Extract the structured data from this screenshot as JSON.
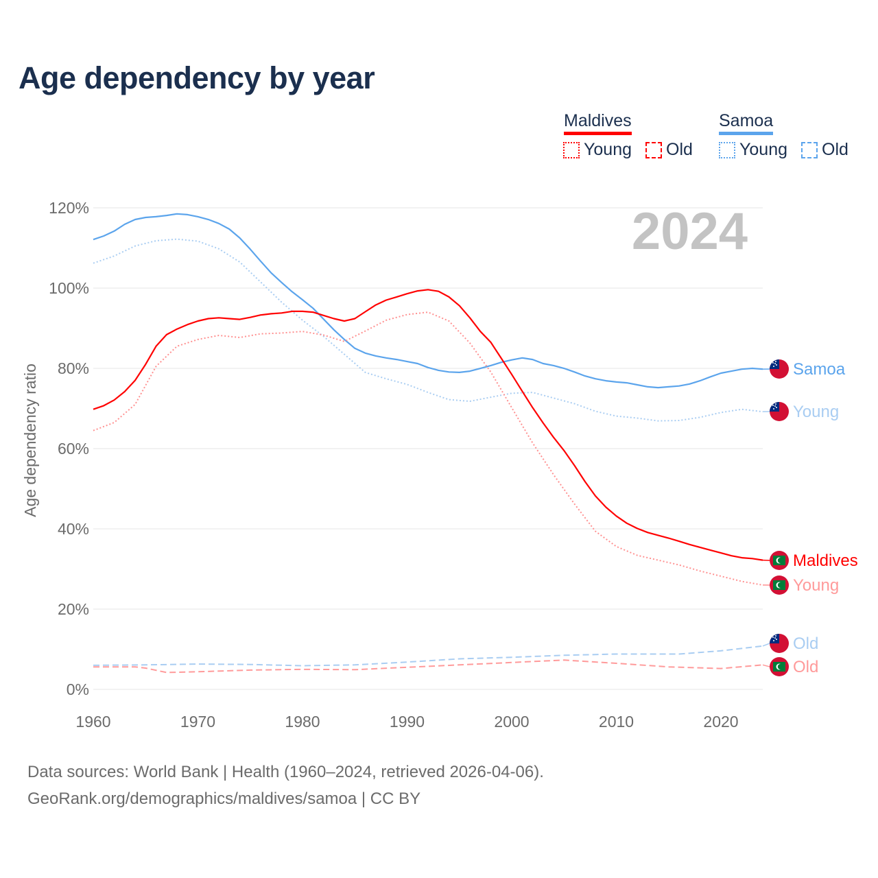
{
  "title": "Age dependency by year",
  "legend": {
    "groups": [
      {
        "name": "Maldives",
        "color": "#ff0000",
        "items": [
          "Young",
          "Old"
        ]
      },
      {
        "name": "Samoa",
        "color": "#5ba4ec",
        "items": [
          "Young",
          "Old"
        ]
      }
    ]
  },
  "year_badge": "2024",
  "footer": {
    "line1": "Data sources: World Bank | Health (1960–2024, retrieved 2026-04-06).",
    "line2": "GeoRank.org/demographics/maldives/samoa | CC BY"
  },
  "chart_data": {
    "type": "line",
    "title": "Age dependency by year",
    "xlabel": "",
    "ylabel": "Age dependency ratio",
    "xlim": [
      1960,
      2024
    ],
    "ylim": [
      0,
      120
    ],
    "x_ticks": [
      "1960",
      "1970",
      "1980",
      "1990",
      "2000",
      "2010",
      "2020"
    ],
    "y_ticks": [
      "0%",
      "20%",
      "40%",
      "60%",
      "80%",
      "100%",
      "120%"
    ],
    "grid": true,
    "series": [
      {
        "name": "Samoa",
        "label": "Samoa",
        "country": "Samoa",
        "kind": "total",
        "color": "#5ba4ec",
        "style": "solid",
        "x": [
          1960,
          1961,
          1962,
          1963,
          1964,
          1965,
          1966,
          1967,
          1968,
          1969,
          1970,
          1971,
          1972,
          1973,
          1974,
          1975,
          1976,
          1977,
          1978,
          1979,
          1980,
          1981,
          1982,
          1983,
          1984,
          1985,
          1986,
          1987,
          1988,
          1989,
          1990,
          1991,
          1992,
          1993,
          1994,
          1995,
          1996,
          1997,
          1998,
          1999,
          2000,
          2001,
          2002,
          2003,
          2004,
          2005,
          2006,
          2007,
          2008,
          2009,
          2010,
          2011,
          2012,
          2013,
          2014,
          2015,
          2016,
          2017,
          2018,
          2019,
          2020,
          2021,
          2022,
          2023,
          2024
        ],
        "y": [
          112.1,
          113.0,
          114.2,
          115.9,
          117.1,
          117.6,
          117.8,
          118.1,
          118.5,
          118.3,
          117.8,
          117.1,
          116.1,
          114.7,
          112.5,
          109.7,
          106.7,
          103.8,
          101.4,
          99.1,
          97.1,
          95.0,
          92.3,
          89.6,
          87.2,
          85.0,
          83.8,
          83.1,
          82.6,
          82.2,
          81.7,
          81.2,
          80.2,
          79.5,
          79.1,
          79.0,
          79.3,
          80.0,
          80.7,
          81.5,
          82.1,
          82.6,
          82.2,
          81.2,
          80.7,
          80.0,
          79.1,
          78.1,
          77.4,
          76.9,
          76.6,
          76.4,
          75.9,
          75.4,
          75.2,
          75.4,
          75.6,
          76.1,
          76.9,
          77.9,
          78.8,
          79.3,
          79.8,
          80.0,
          79.8
        ]
      },
      {
        "name": "Samoa Young",
        "label": "Young",
        "country": "Samoa",
        "kind": "young",
        "color": "#a9cdf2",
        "style": "dotted",
        "x": [
          1960,
          1962,
          1964,
          1966,
          1968,
          1970,
          1972,
          1974,
          1976,
          1978,
          1980,
          1982,
          1984,
          1986,
          1988,
          1990,
          1992,
          1994,
          1996,
          1998,
          2000,
          2002,
          2004,
          2006,
          2008,
          2010,
          2012,
          2014,
          2016,
          2018,
          2020,
          2022,
          2024
        ],
        "y": [
          106.2,
          108.0,
          110.5,
          111.8,
          112.2,
          111.7,
          109.8,
          106.5,
          101.5,
          96.5,
          92.0,
          88.0,
          83.5,
          79.0,
          77.4,
          76.0,
          74.0,
          72.2,
          71.8,
          72.8,
          73.8,
          74.0,
          72.6,
          71.2,
          69.3,
          68.1,
          67.6,
          66.9,
          67.0,
          67.8,
          69.0,
          69.8,
          69.2
        ]
      },
      {
        "name": "Maldives",
        "label": "Maldives",
        "country": "Maldives",
        "kind": "total",
        "color": "#ff0000",
        "style": "solid",
        "x": [
          1960,
          1961,
          1962,
          1963,
          1964,
          1965,
          1966,
          1967,
          1968,
          1969,
          1970,
          1971,
          1972,
          1973,
          1974,
          1975,
          1976,
          1977,
          1978,
          1979,
          1980,
          1981,
          1982,
          1983,
          1984,
          1985,
          1986,
          1987,
          1988,
          1989,
          1990,
          1991,
          1992,
          1993,
          1994,
          1995,
          1996,
          1997,
          1998,
          1999,
          2000,
          2001,
          2002,
          2003,
          2004,
          2005,
          2006,
          2007,
          2008,
          2009,
          2010,
          2011,
          2012,
          2013,
          2014,
          2015,
          2016,
          2017,
          2018,
          2019,
          2020,
          2021,
          2022,
          2023,
          2024
        ],
        "y": [
          69.8,
          70.7,
          72.1,
          74.2,
          77.0,
          81.0,
          85.5,
          88.4,
          89.8,
          90.9,
          91.8,
          92.4,
          92.6,
          92.4,
          92.2,
          92.7,
          93.3,
          93.6,
          93.8,
          94.2,
          94.2,
          94.0,
          93.2,
          92.4,
          91.8,
          92.4,
          94.1,
          95.8,
          97.0,
          97.8,
          98.6,
          99.3,
          99.6,
          99.2,
          97.8,
          95.6,
          92.6,
          89.2,
          86.5,
          82.5,
          78.5,
          74.3,
          70.2,
          66.4,
          62.8,
          59.5,
          55.8,
          51.8,
          48.2,
          45.4,
          43.2,
          41.4,
          40.1,
          39.1,
          38.4,
          37.7,
          36.9,
          36.1,
          35.4,
          34.7,
          34.0,
          33.3,
          32.8,
          32.6,
          32.2
        ]
      },
      {
        "name": "Maldives Young",
        "label": "Young",
        "country": "Maldives",
        "kind": "young",
        "color": "#ff9090",
        "style": "dotted",
        "x": [
          1960,
          1962,
          1964,
          1966,
          1968,
          1970,
          1972,
          1974,
          1976,
          1978,
          1980,
          1982,
          1984,
          1986,
          1988,
          1990,
          1992,
          1994,
          1996,
          1998,
          2000,
          2002,
          2004,
          2006,
          2008,
          2010,
          2012,
          2014,
          2016,
          2018,
          2020,
          2022,
          2024
        ],
        "y": [
          64.5,
          66.5,
          71.0,
          80.5,
          85.5,
          87.2,
          88.2,
          87.7,
          88.6,
          88.8,
          89.2,
          88.3,
          86.7,
          89.3,
          92.0,
          93.4,
          94.0,
          91.8,
          86.3,
          79.1,
          70.2,
          61.4,
          53.5,
          46.2,
          39.4,
          35.6,
          33.4,
          32.2,
          31.0,
          29.5,
          28.2,
          26.9,
          26.0
        ]
      },
      {
        "name": "Samoa Old",
        "label": "Old",
        "country": "Samoa",
        "kind": "old",
        "color": "#a9cdf2",
        "style": "dashed",
        "x": [
          1960,
          1965,
          1970,
          1975,
          1980,
          1985,
          1990,
          1995,
          2000,
          2005,
          2010,
          2016,
          2020,
          2024
        ],
        "y": [
          6.0,
          6.1,
          6.3,
          6.2,
          5.9,
          6.1,
          6.8,
          7.6,
          8.0,
          8.5,
          8.8,
          8.8,
          9.6,
          10.8
        ]
      },
      {
        "name": "Maldives Old",
        "label": "Old",
        "country": "Maldives",
        "kind": "old",
        "color": "#ff9a9a",
        "style": "dashed",
        "x": [
          1960,
          1964,
          1965,
          1967,
          1970,
          1975,
          1980,
          1985,
          1990,
          1995,
          2000,
          2005,
          2010,
          2015,
          2020,
          2024
        ],
        "y": [
          5.6,
          5.6,
          5.3,
          4.2,
          4.4,
          4.8,
          5.0,
          4.9,
          5.5,
          6.1,
          6.7,
          7.3,
          6.5,
          5.6,
          5.2,
          6.1
        ]
      }
    ]
  }
}
